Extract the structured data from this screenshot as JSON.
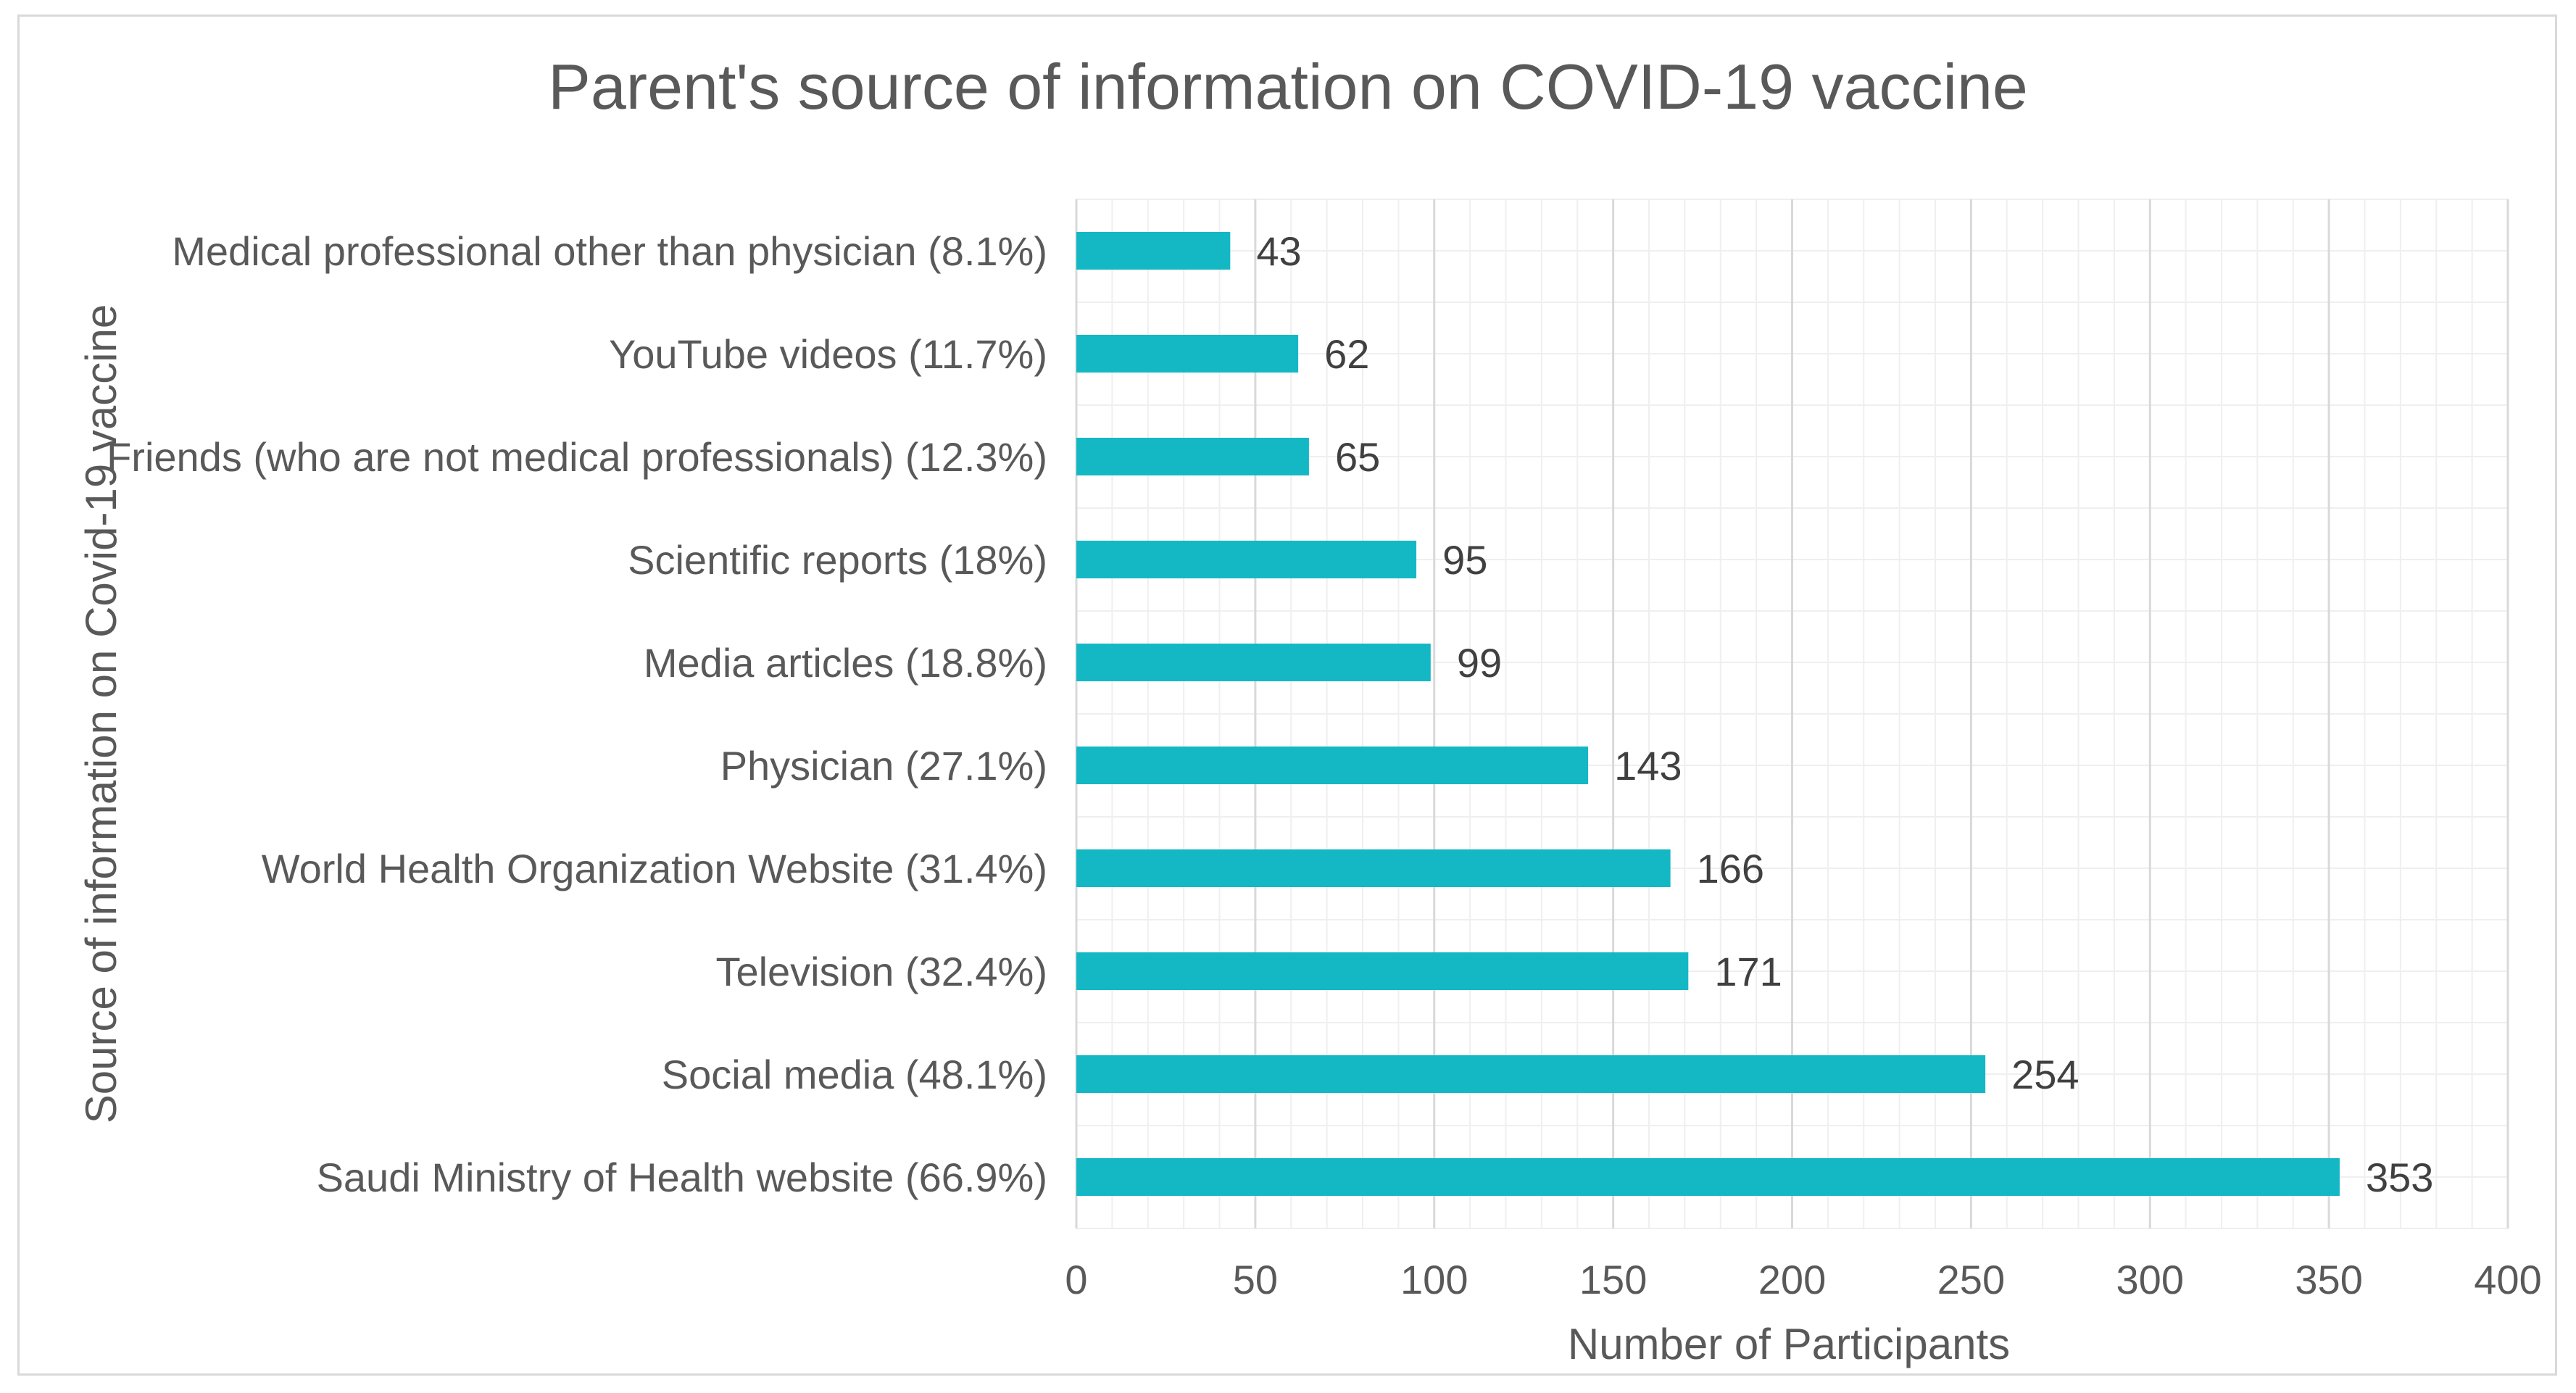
{
  "chart_data": {
    "type": "bar",
    "orientation": "horizontal",
    "title": "Parent's source of information on COVID-19 vaccine",
    "xlabel": "Number of Participants",
    "ylabel": "Source of information on Covid-19 vaccine",
    "xlim": [
      0,
      400
    ],
    "xticks": [
      0,
      50,
      100,
      150,
      200,
      250,
      300,
      350,
      400
    ],
    "minor_step": 10,
    "grid": true,
    "bar_color": "#14b8c4",
    "categories": [
      "Medical professional other than physician (8.1%)",
      "YouTube videos (11.7%)",
      "Friends (who are not medical professionals) (12.3%)",
      "Scientific reports (18%)",
      "Media articles (18.8%)",
      "Physician (27.1%)",
      "World Health Organization Website (31.4%)",
      "Television (32.4%)",
      "Social media (48.1%)",
      "Saudi Ministry of Health website (66.9%)"
    ],
    "values": [
      43,
      62,
      65,
      95,
      99,
      143,
      166,
      171,
      254,
      353
    ]
  }
}
